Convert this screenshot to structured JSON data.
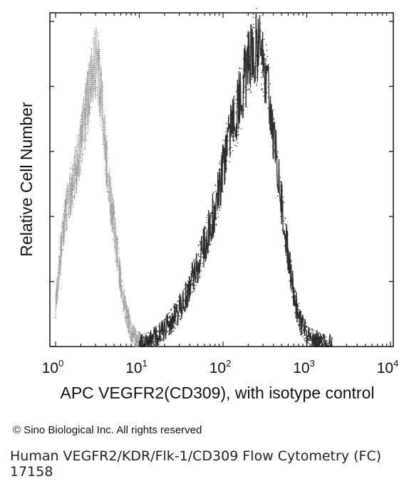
{
  "chart_data": {
    "type": "line",
    "xscale": "log",
    "xlim": [
      1,
      10000
    ],
    "ylim": [
      0,
      1
    ],
    "grid": false,
    "legend": "none",
    "xlabel": "APC VEGFR2(CD309), with isotype control",
    "ylabel": "Relative Cell Number",
    "x_ticks": [
      {
        "base": "10",
        "exp": "0",
        "value": 1
      },
      {
        "base": "10",
        "exp": "1",
        "value": 10
      },
      {
        "base": "10",
        "exp": "2",
        "value": 100
      },
      {
        "base": "10",
        "exp": "3",
        "value": 1000
      },
      {
        "base": "10",
        "exp": "4",
        "value": 10000
      }
    ],
    "series": [
      {
        "color": "#8a8a8a",
        "x": [
          1.0,
          1.2,
          1.4,
          1.6,
          1.8,
          2.0,
          2.3,
          2.6,
          2.9,
          3.2,
          3.6,
          4.0,
          4.6,
          5.3,
          6.0,
          7.0,
          8.0,
          9.0,
          10.0,
          12.0,
          15.0
        ],
        "y": [
          0.12,
          0.34,
          0.44,
          0.5,
          0.55,
          0.62,
          0.72,
          0.8,
          0.88,
          0.86,
          0.74,
          0.58,
          0.44,
          0.32,
          0.2,
          0.1,
          0.05,
          0.02,
          0.012,
          0.004,
          0.0
        ]
      },
      {
        "color": "#1a1a1a",
        "x": [
          10,
          15,
          20,
          28,
          35,
          45,
          55,
          70,
          85,
          100,
          120,
          150,
          180,
          220,
          260,
          300,
          360,
          420,
          500,
          600,
          700,
          850,
          1000,
          1300,
          1700,
          2000
        ],
        "y": [
          0.0,
          0.025,
          0.05,
          0.1,
          0.15,
          0.22,
          0.28,
          0.37,
          0.45,
          0.55,
          0.64,
          0.73,
          0.82,
          0.9,
          0.93,
          0.88,
          0.76,
          0.6,
          0.44,
          0.28,
          0.16,
          0.07,
          0.035,
          0.015,
          0.005,
          0.0
        ]
      }
    ]
  },
  "copyright": "© Sino Biological Inc. All rights reserved",
  "caption_line1": "Human VEGFR2/KDR/Flk-1/CD309 Flow Cytometry (FC)",
  "caption_line2": "17158"
}
